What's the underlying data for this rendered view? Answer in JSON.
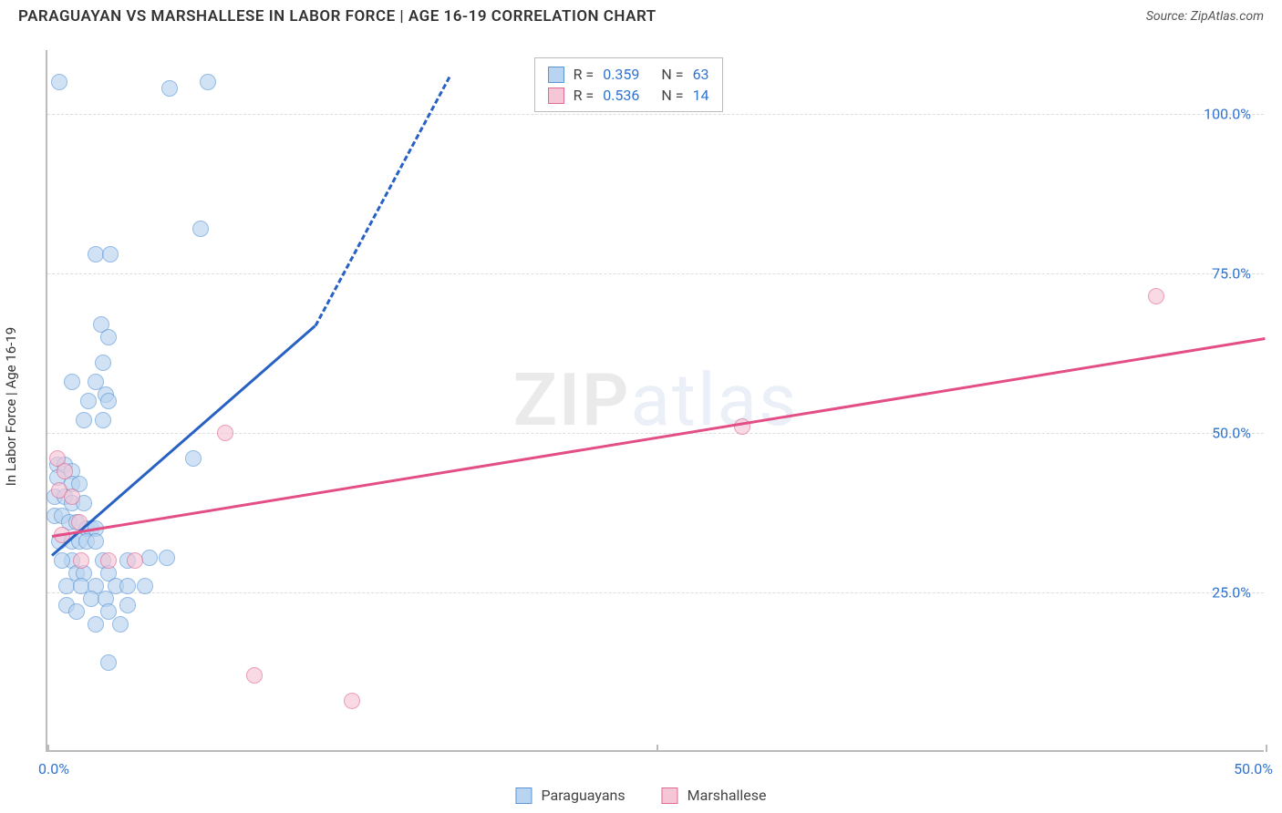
{
  "title": "PARAGUAYAN VS MARSHALLESE IN LABOR FORCE | AGE 16-19 CORRELATION CHART",
  "title_fontsize": 17,
  "source_label": "Source:",
  "source_value": "ZipAtlas.com",
  "y_axis_title": "In Labor Force | Age 16-19",
  "watermark_bold": "ZIP",
  "watermark_light": "atlas",
  "chart": {
    "type": "scatter",
    "background_color": "#ffffff",
    "grid_color": "#dddddd",
    "axis_color": "#bbbbbb",
    "tick_label_color": "#2e73d0",
    "tick_label_fontsize": 16,
    "xlim": [
      0,
      50
    ],
    "ylim": [
      0,
      110
    ],
    "y_gridlines": [
      25,
      50,
      75,
      100
    ],
    "y_tick_labels": [
      "25.0%",
      "50.0%",
      "75.0%",
      "100.0%"
    ],
    "x_ticks": [
      0,
      25,
      50
    ],
    "x_tick_labels_left": "0.0%",
    "x_tick_labels_right": "50.0%",
    "point_radius": 9,
    "point_stroke_width": 1.5,
    "series": [
      {
        "name": "Paraguayans",
        "fill": "#b9d4f0",
        "stroke": "#5a96d6",
        "fill_opacity": 0.65,
        "points": [
          [
            0.5,
            105
          ],
          [
            5.0,
            104
          ],
          [
            6.6,
            105
          ],
          [
            6.3,
            82
          ],
          [
            2.0,
            78
          ],
          [
            2.6,
            78
          ],
          [
            2.2,
            67
          ],
          [
            2.5,
            65
          ],
          [
            2.3,
            61
          ],
          [
            1.0,
            58
          ],
          [
            2.0,
            58
          ],
          [
            2.4,
            56
          ],
          [
            1.7,
            55
          ],
          [
            2.5,
            55
          ],
          [
            2.3,
            52
          ],
          [
            1.5,
            52
          ],
          [
            6.0,
            46
          ],
          [
            0.4,
            45
          ],
          [
            0.7,
            45
          ],
          [
            1.0,
            44
          ],
          [
            0.4,
            43
          ],
          [
            1.0,
            42
          ],
          [
            1.3,
            42
          ],
          [
            0.3,
            40
          ],
          [
            0.7,
            40
          ],
          [
            1.0,
            39
          ],
          [
            1.5,
            39
          ],
          [
            0.3,
            37
          ],
          [
            0.6,
            37
          ],
          [
            0.9,
            36
          ],
          [
            1.2,
            36
          ],
          [
            1.6,
            35
          ],
          [
            1.8,
            35
          ],
          [
            2.0,
            35
          ],
          [
            0.5,
            33
          ],
          [
            1.0,
            33
          ],
          [
            1.3,
            33
          ],
          [
            1.6,
            33
          ],
          [
            2.0,
            33
          ],
          [
            4.2,
            30.5
          ],
          [
            4.9,
            30.5
          ],
          [
            3.3,
            30
          ],
          [
            2.3,
            30
          ],
          [
            1.0,
            30
          ],
          [
            0.6,
            30
          ],
          [
            1.2,
            28
          ],
          [
            1.5,
            28
          ],
          [
            2.5,
            28
          ],
          [
            0.8,
            26
          ],
          [
            1.4,
            26
          ],
          [
            2.0,
            26
          ],
          [
            2.8,
            26
          ],
          [
            3.3,
            26
          ],
          [
            4.0,
            26
          ],
          [
            1.8,
            24
          ],
          [
            2.4,
            24
          ],
          [
            3.3,
            23
          ],
          [
            0.8,
            23
          ],
          [
            1.2,
            22
          ],
          [
            2.5,
            22
          ],
          [
            2.0,
            20
          ],
          [
            3.0,
            20
          ],
          [
            2.5,
            14
          ]
        ],
        "trend": {
          "color": "#2861c4",
          "width": 3,
          "solid_from": [
            0.2,
            31
          ],
          "solid_to": [
            11,
            67
          ],
          "dashed_to": [
            16.5,
            106
          ]
        }
      },
      {
        "name": "Marshallese",
        "fill": "#f5c6d6",
        "stroke": "#df6a94",
        "fill_opacity": 0.65,
        "points": [
          [
            0.4,
            46
          ],
          [
            0.7,
            44
          ],
          [
            0.5,
            41
          ],
          [
            1.0,
            40
          ],
          [
            0.6,
            34
          ],
          [
            1.3,
            36
          ],
          [
            1.4,
            30
          ],
          [
            2.5,
            30
          ],
          [
            3.6,
            30
          ],
          [
            7.3,
            50
          ],
          [
            28.5,
            51
          ],
          [
            45.5,
            71.5
          ],
          [
            8.5,
            12
          ],
          [
            12.5,
            8
          ]
        ],
        "trend": {
          "color": "#e24e85",
          "width": 3,
          "solid_from": [
            0.2,
            34
          ],
          "solid_to": [
            50,
            65
          ]
        }
      }
    ]
  },
  "stats_box": {
    "rows": [
      {
        "swatch_fill": "#b9d4f0",
        "swatch_stroke": "#5a96d6",
        "r_label": "R =",
        "r": "0.359",
        "n_label": "N =",
        "n": "63"
      },
      {
        "swatch_fill": "#f5c6d6",
        "swatch_stroke": "#df6a94",
        "r_label": "R =",
        "r": "0.536",
        "n_label": "N =",
        "n": "14"
      }
    ]
  },
  "bottom_legend": [
    {
      "label": "Paraguayans",
      "swatch_fill": "#b9d4f0",
      "swatch_stroke": "#5a96d6"
    },
    {
      "label": "Marshallese",
      "swatch_fill": "#f5c6d6",
      "swatch_stroke": "#df6a94"
    }
  ]
}
